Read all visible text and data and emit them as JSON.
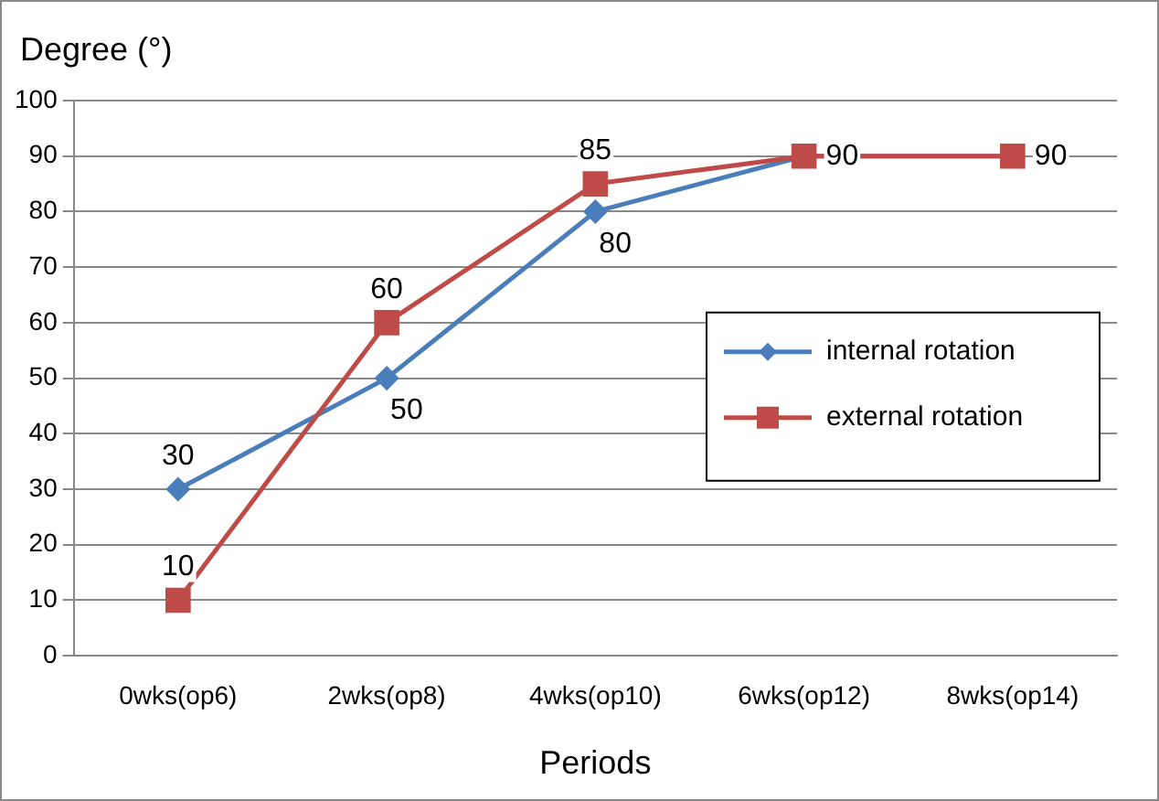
{
  "chart_data": {
    "type": "line",
    "ylabel": "Degree (°)",
    "xlabel": "Periods",
    "categories": [
      "0wks(op6)",
      "2wks(op8)",
      "4wks(op10)",
      "6wks(op12)",
      "8wks(op14)"
    ],
    "series": [
      {
        "name": "internal rotation",
        "color": "#4a7ebb",
        "marker": "diamond",
        "values": [
          30,
          50,
          80,
          90,
          90
        ],
        "value_labels": [
          "30",
          "50",
          "80",
          null,
          null
        ]
      },
      {
        "name": "external rotation",
        "color": "#be4b48",
        "marker": "square",
        "values": [
          10,
          60,
          85,
          90,
          90
        ],
        "value_labels": [
          "10",
          "60",
          "85",
          "90",
          "90"
        ]
      }
    ],
    "ylim": [
      0,
      100
    ],
    "yticks": [
      0,
      10,
      20,
      30,
      40,
      50,
      60,
      70,
      80,
      90,
      100
    ],
    "grid": "y",
    "legend": "right",
    "line_style": "solid"
  }
}
